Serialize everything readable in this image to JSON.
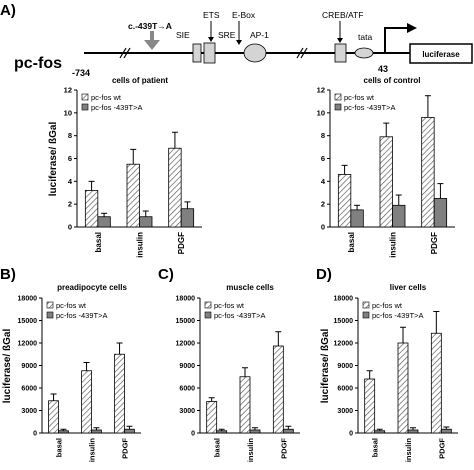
{
  "panel_labels": {
    "a": "A)",
    "b": "B)",
    "c": "C)",
    "d": "D)"
  },
  "construct": {
    "gene_label": "pc-fos",
    "mutation_label": "c.-439T→A",
    "elements": [
      "SIE",
      "ETS",
      "SRE",
      "E-Box",
      "AP-1",
      "CREB/ATF",
      "tata"
    ],
    "reporter": "luciferase",
    "pos_start": "-734",
    "pos_end": "43"
  },
  "chart_data": [
    {
      "id": "patient",
      "type": "bar",
      "title": "cells of patient",
      "ylabel": "luciferase/ ßGal",
      "categories": [
        "basal",
        "insulin",
        "PDGF"
      ],
      "yticks": [
        0,
        2,
        4,
        6,
        8,
        10,
        12
      ],
      "ylim": [
        0,
        12
      ],
      "series": [
        {
          "name": "pc-fos wt",
          "values": [
            3.2,
            5.5,
            6.9
          ],
          "errors": [
            0.8,
            1.3,
            1.4
          ]
        },
        {
          "name": "pc-fos -439T>A",
          "values": [
            0.9,
            0.9,
            1.6
          ],
          "errors": [
            0.3,
            0.5,
            0.6
          ]
        }
      ],
      "legend": "top-left"
    },
    {
      "id": "control",
      "type": "bar",
      "title": "cells of control",
      "ylabel": "",
      "categories": [
        "basal",
        "insulin",
        "PDGF"
      ],
      "yticks": [
        0,
        2,
        4,
        6,
        8,
        10,
        12
      ],
      "ylim": [
        0,
        12
      ],
      "series": [
        {
          "name": "pc-fos wt",
          "values": [
            4.6,
            7.9,
            9.6
          ],
          "errors": [
            0.8,
            1.2,
            1.9
          ]
        },
        {
          "name": "pc-fos -439T>A",
          "values": [
            1.5,
            1.9,
            2.5
          ],
          "errors": [
            0.4,
            0.9,
            1.3
          ]
        }
      ],
      "legend": "top-left"
    },
    {
      "id": "preadipocyte",
      "type": "bar",
      "title": "preadipocyte cells",
      "ylabel": "luciferase/ ßGal",
      "categories": [
        "basal",
        "insulin",
        "PDGF"
      ],
      "yticks": [
        0,
        3000,
        6000,
        9000,
        12000,
        15000,
        18000
      ],
      "ylim": [
        0,
        18000
      ],
      "series": [
        {
          "name": "pc-fos wt",
          "values": [
            4300,
            8300,
            10500
          ],
          "errors": [
            900,
            1100,
            1500
          ]
        },
        {
          "name": "pc-fos -439T>A",
          "values": [
            300,
            400,
            500
          ],
          "errors": [
            200,
            300,
            400
          ]
        }
      ],
      "legend": "top-left"
    },
    {
      "id": "muscle",
      "type": "bar",
      "title": "muscle cells",
      "ylabel": "",
      "categories": [
        "basal",
        "insulin",
        "PDGF"
      ],
      "yticks": [
        0,
        3000,
        6000,
        9000,
        12000,
        15000,
        18000
      ],
      "ylim": [
        0,
        18000
      ],
      "series": [
        {
          "name": "pc-fos wt",
          "values": [
            4200,
            7500,
            11600
          ],
          "errors": [
            500,
            1200,
            1900
          ]
        },
        {
          "name": "pc-fos -439T>A",
          "values": [
            300,
            400,
            500
          ],
          "errors": [
            200,
            300,
            400
          ]
        }
      ],
      "legend": "top-left"
    },
    {
      "id": "liver",
      "type": "bar",
      "title": "liver cells",
      "ylabel": "luciferase/ ßGal",
      "categories": [
        "basal",
        "insulin",
        "PDGF"
      ],
      "yticks": [
        0,
        3000,
        6000,
        9000,
        12000,
        15000,
        18000
      ],
      "ylim": [
        0,
        18000
      ],
      "series": [
        {
          "name": "pc-fos wt",
          "values": [
            7200,
            12000,
            13300
          ],
          "errors": [
            1100,
            2100,
            2900
          ]
        },
        {
          "name": "pc-fos -439T>A",
          "values": [
            300,
            400,
            500
          ],
          "errors": [
            200,
            300,
            300
          ]
        }
      ],
      "legend": "top-left"
    }
  ]
}
